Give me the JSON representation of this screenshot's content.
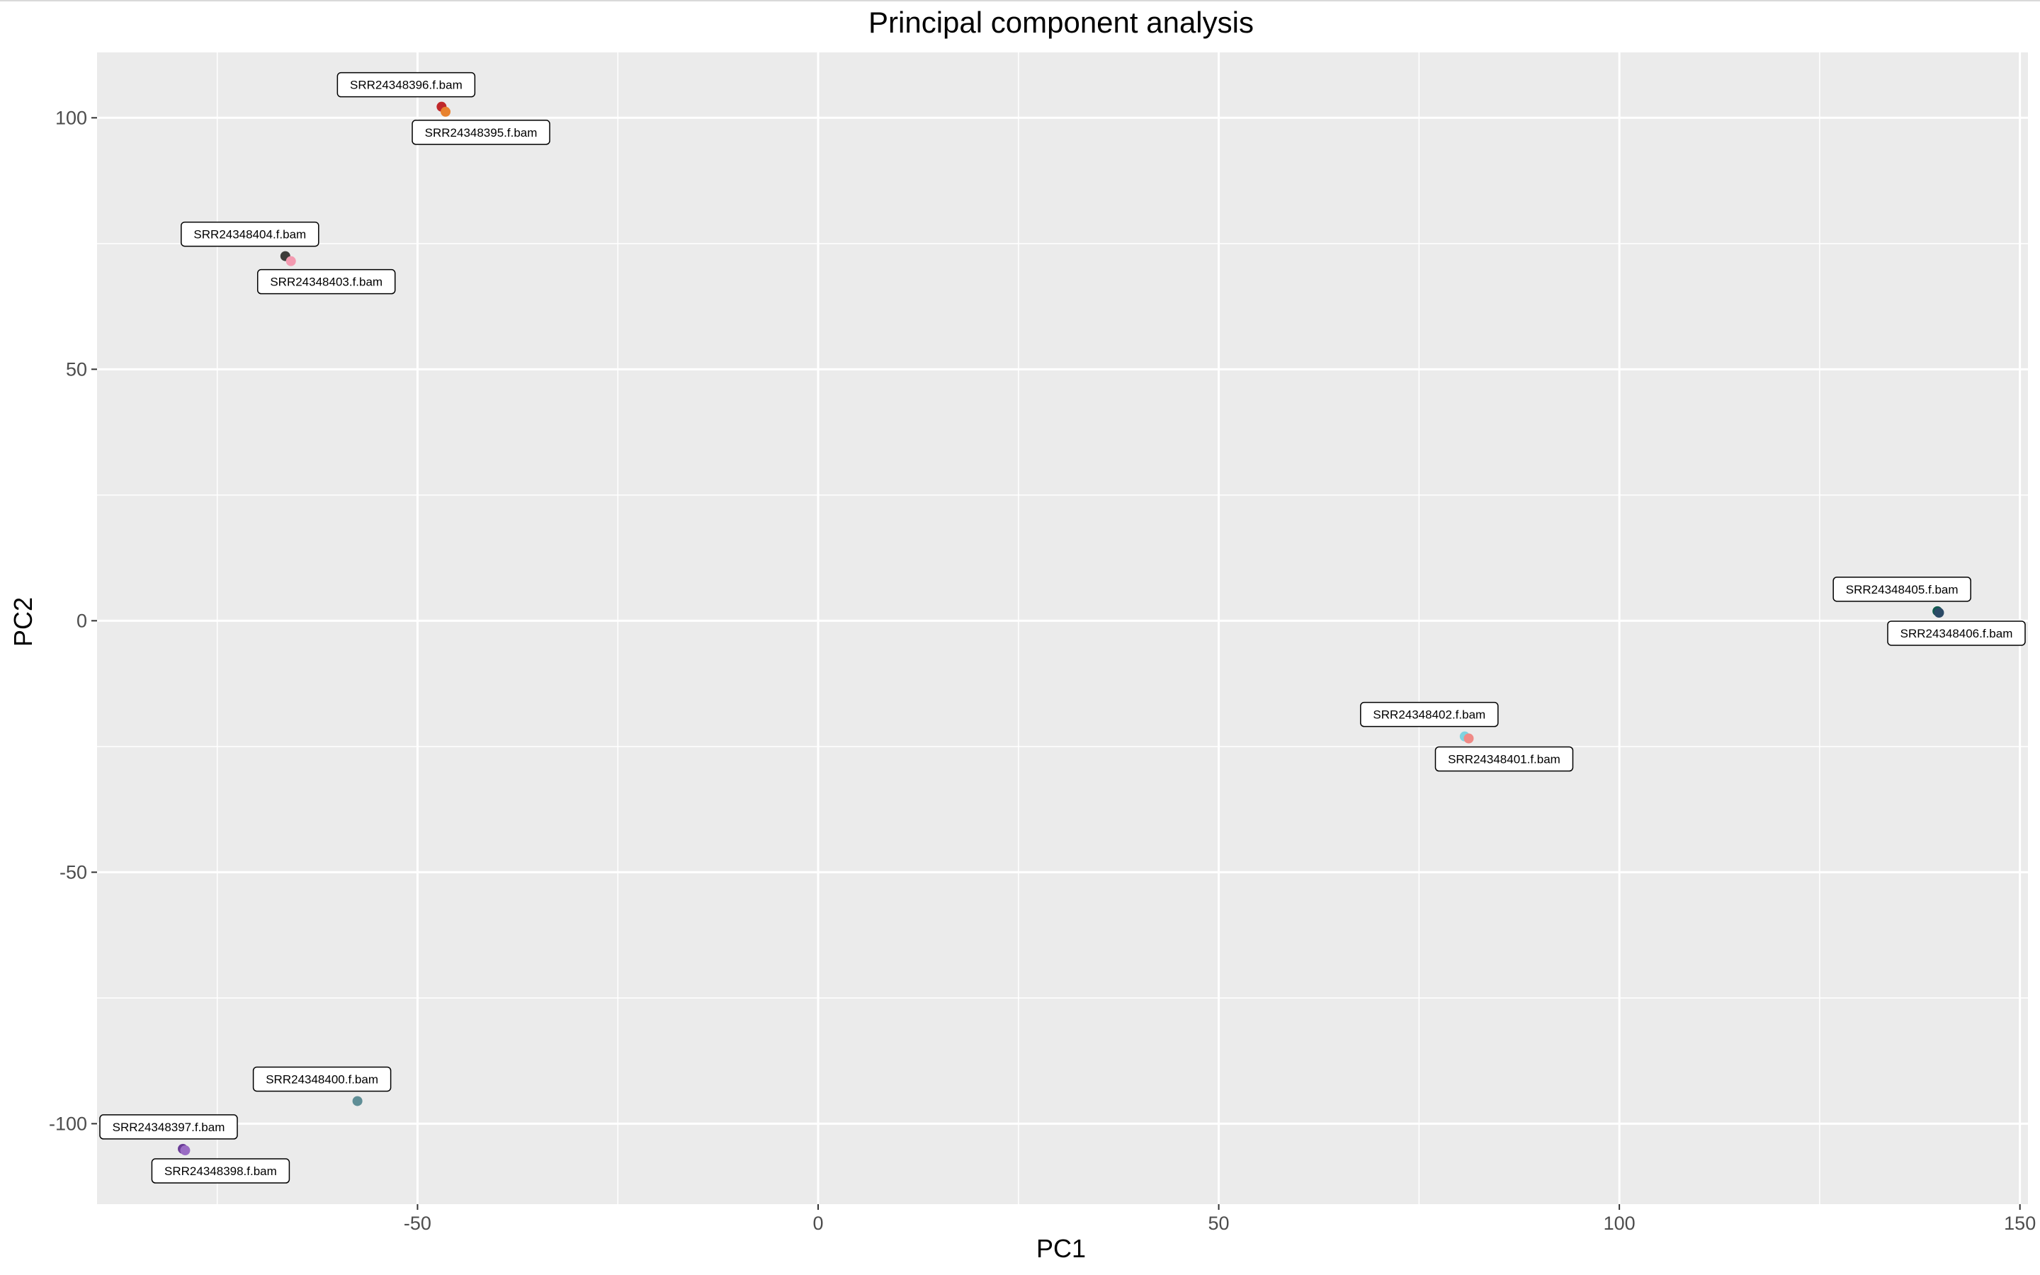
{
  "chart_data": {
    "type": "scatter",
    "title": "Principal component analysis",
    "xlabel": "PC1",
    "ylabel": "PC2",
    "xlim": [
      -90,
      151
    ],
    "ylim": [
      -116,
      113
    ],
    "x_ticks": [
      -50,
      0,
      50,
      100,
      150
    ],
    "y_ticks": [
      -100,
      -50,
      0,
      50,
      100
    ],
    "x_tick_labels": [
      "-50",
      "0",
      "50",
      "100",
      "150"
    ],
    "y_tick_labels": [
      "-100",
      "-50",
      "0",
      "50",
      "100"
    ],
    "grid": true,
    "legend": "none",
    "panel_color": "#ebebeb",
    "grid_color": "#ffffff",
    "points": [
      {
        "label": "SRR24348396.f.bam",
        "x": -47.0,
        "y": 102.2,
        "color": "#c0282a",
        "label_side": "above"
      },
      {
        "label": "SRR24348395.f.bam",
        "x": -46.5,
        "y": 101.2,
        "color": "#e8822e",
        "label_side": "below"
      },
      {
        "label": "SRR24348404.f.bam",
        "x": -66.5,
        "y": 72.5,
        "color": "#3d3d3a",
        "label_side": "above"
      },
      {
        "label": "SRR24348403.f.bam",
        "x": -65.8,
        "y": 71.5,
        "color": "#f39ab0",
        "label_side": "below"
      },
      {
        "label": "SRR24348405.f.bam",
        "x": 139.7,
        "y": 1.9,
        "color": "#0f5a4e",
        "label_side": "above"
      },
      {
        "label": "SRR24348406.f.bam",
        "x": 139.9,
        "y": 1.6,
        "color": "#2b4a66",
        "label_side": "below"
      },
      {
        "label": "SRR24348402.f.bam",
        "x": 80.7,
        "y": -23.0,
        "color": "#7fd3e0",
        "label_side": "above"
      },
      {
        "label": "SRR24348401.f.bam",
        "x": 81.2,
        "y": -23.4,
        "color": "#f08a86",
        "label_side": "below"
      },
      {
        "label": "SRR24348400.f.bam",
        "x": -57.5,
        "y": -95.5,
        "color": "#5f8e96",
        "label_side": "above"
      },
      {
        "label": "SRR24348397.f.bam",
        "x": -79.3,
        "y": -105.0,
        "color": "#6a3c97",
        "label_side": "above"
      },
      {
        "label": "SRR24348398.f.bam",
        "x": -79.0,
        "y": -105.3,
        "color": "#9a6cc4",
        "label_side": "below"
      }
    ]
  }
}
